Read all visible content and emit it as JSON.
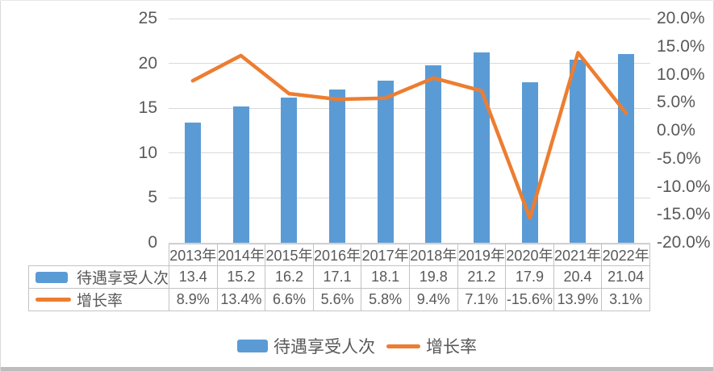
{
  "chart_data": {
    "type": "bar+line combo",
    "title": "",
    "categories": [
      "2013年",
      "2014年",
      "2015年",
      "2016年",
      "2017年",
      "2018年",
      "2019年",
      "2020年",
      "2021年",
      "2022年"
    ],
    "series": [
      {
        "name": "待遇享受人次",
        "type": "bar",
        "axis": "left",
        "color": "#5B9BD5",
        "values": [
          13.4,
          15.2,
          16.2,
          17.1,
          18.1,
          19.8,
          21.2,
          17.9,
          20.4,
          21.04
        ],
        "labels": [
          "13.4",
          "15.2",
          "16.2",
          "17.1",
          "18.1",
          "19.8",
          "21.2",
          "17.9",
          "20.4",
          "21.04"
        ]
      },
      {
        "name": "增长率",
        "type": "line",
        "axis": "right",
        "color": "#ED7D31",
        "values": [
          8.9,
          13.4,
          6.6,
          5.6,
          5.8,
          9.4,
          7.1,
          -15.6,
          13.9,
          3.1
        ],
        "labels": [
          "8.9%",
          "13.4%",
          "6.6%",
          "5.6%",
          "5.8%",
          "9.4%",
          "7.1%",
          "-15.6%",
          "13.9%",
          "3.1%"
        ]
      }
    ],
    "left_axis": {
      "min": 0,
      "max": 25,
      "tick_step": 5,
      "tick_labels": [
        "0",
        "5",
        "10",
        "15",
        "20",
        "25"
      ]
    },
    "right_axis": {
      "min": -20,
      "max": 20,
      "tick_labels": [
        "20.0%",
        "15.0%",
        "10.0%",
        "5.0%",
        "0.0%",
        "-5.0%",
        "-10.0%",
        "-15.0%",
        "-20.0%"
      ]
    },
    "gridlines": "horizontal",
    "legend_position": "bottom",
    "has_data_table": true
  },
  "legend": {
    "items": [
      {
        "label": "待遇享受人次",
        "swatch": "bar",
        "color": "#5B9BD5"
      },
      {
        "label": "增长率",
        "swatch": "line",
        "color": "#ED7D31"
      }
    ]
  },
  "colors": {
    "bar": "#5B9BD5",
    "line": "#ED7D31",
    "gridline": "#D9D9D9",
    "axis_text": "#595959",
    "table_border": "#C3C3C3",
    "frame_border": "#D9D9D9",
    "frame_bottom": "#BDBDBD",
    "background": "#FFFFFF"
  }
}
